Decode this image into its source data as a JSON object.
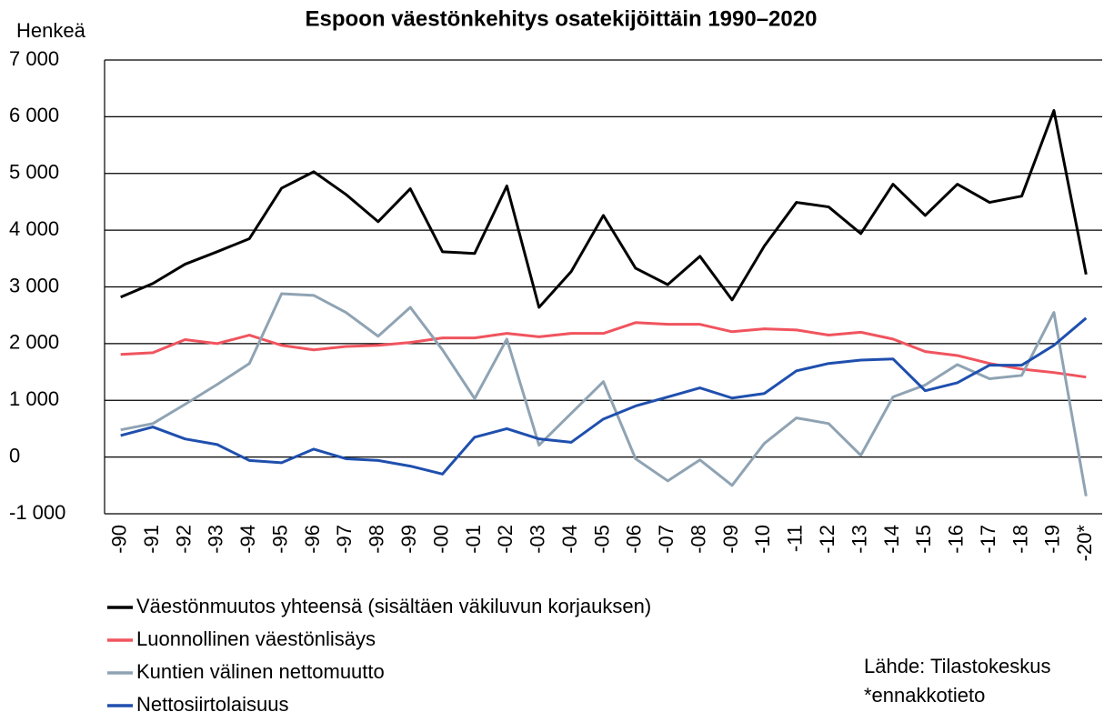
{
  "chart_data": {
    "type": "line",
    "title": "Espoon väestönkehitys osatekijöittäin 1990–2020",
    "y_label": "Henkeä",
    "source": "Lähde:  Tilastokeskus",
    "note": "*ennakkotieto",
    "categories": [
      "-90",
      "-91",
      "-92",
      "-93",
      "-94",
      "-95",
      "-96",
      "-97",
      "-98",
      "-99",
      "-00",
      "-01",
      "-02",
      "-03",
      "-04",
      "-05",
      "-06",
      "-07",
      "-08",
      "-09",
      "-10",
      "-11",
      "-12",
      "-13",
      "-14",
      "-15",
      "-16",
      "-17",
      "-18",
      "-19",
      "-20*"
    ],
    "series": [
      {
        "name": "Väestönmuutos yhteensä (sisältäen väkiluvun korjauksen)",
        "color": "#000000",
        "values": [
          2820,
          3060,
          3400,
          3620,
          3850,
          4740,
          5030,
          4630,
          4150,
          4730,
          3620,
          3590,
          4780,
          2640,
          3270,
          4260,
          3330,
          3040,
          3540,
          2770,
          3720,
          4490,
          4410,
          3940,
          4810,
          4260,
          4810,
          4490,
          4600,
          6110,
          3220
        ]
      },
      {
        "name": "Luonnollinen väestönlisäys",
        "color": "#f0545e",
        "values": [
          1810,
          1840,
          2070,
          2000,
          2150,
          1970,
          1890,
          1950,
          1970,
          2020,
          2100,
          2100,
          2180,
          2120,
          2180,
          2180,
          2370,
          2340,
          2340,
          2210,
          2260,
          2240,
          2150,
          2200,
          2080,
          1860,
          1790,
          1650,
          1550,
          1490,
          1410
        ]
      },
      {
        "name": "Kuntien välinen nettomuutto",
        "color": "#8fa3b3",
        "values": [
          480,
          590,
          930,
          1280,
          1650,
          2880,
          2850,
          2550,
          2130,
          2640,
          1890,
          1030,
          2080,
          210,
          770,
          1330,
          -30,
          -420,
          -50,
          -500,
          240,
          690,
          590,
          30,
          1060,
          1270,
          1630,
          1380,
          1440,
          2550,
          -690
        ]
      },
      {
        "name": "Nettosiirtolaisuus",
        "color": "#1f4fae",
        "values": [
          380,
          530,
          320,
          220,
          -60,
          -100,
          140,
          -30,
          -60,
          -160,
          -300,
          350,
          500,
          320,
          260,
          670,
          900,
          1060,
          1220,
          1040,
          1120,
          1520,
          1650,
          1710,
          1730,
          1170,
          1310,
          1620,
          1620,
          1970,
          2450
        ]
      }
    ],
    "ylim": [
      -1000,
      7000
    ],
    "yticks": [
      {
        "value": -1000,
        "label": "-1 000"
      },
      0,
      {
        "value": 1000,
        "label": "1 000"
      },
      {
        "value": 2000,
        "label": "2 000"
      },
      {
        "value": 3000,
        "label": "3 000"
      },
      {
        "value": 4000,
        "label": "4 000"
      },
      {
        "value": 5000,
        "label": "5 000"
      },
      {
        "value": 6000,
        "label": "6 000"
      },
      {
        "value": 7000,
        "label": "7 000"
      }
    ],
    "negative_tick_color": "#e00000",
    "grid": true
  }
}
